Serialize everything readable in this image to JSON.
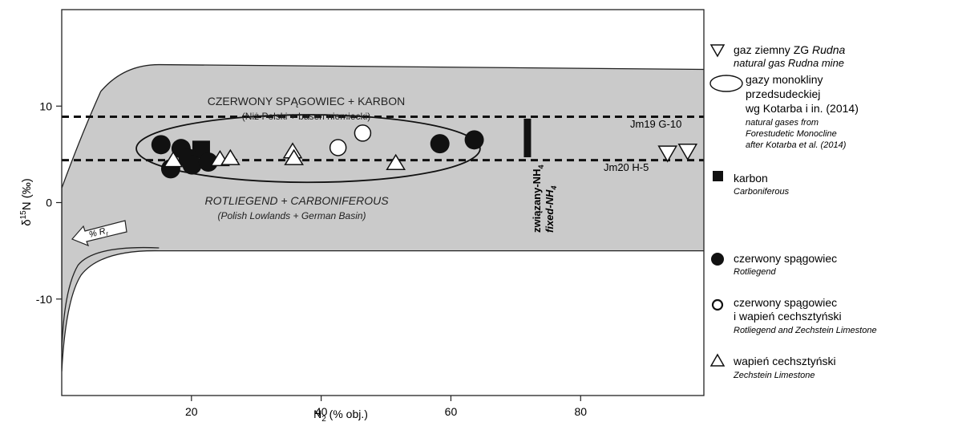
{
  "chart_data": {
    "type": "scatter",
    "xlabel": "N",
    "xlabel_sub": "2",
    "xlabel_rest": " (% obj.)",
    "ylabel_pre": "δ",
    "ylabel_sup": "15",
    "ylabel_rest": "N (‰)",
    "xlim": [
      0,
      99
    ],
    "ylim": [
      -20,
      20
    ],
    "x_ticks": [
      20,
      40,
      60,
      80
    ],
    "y_ticks": [
      10,
      0,
      -10
    ],
    "grid": false,
    "dashed_lines_y": [
      8.9,
      4.4
    ],
    "series": [
      {
        "name": "karbon",
        "name_en": "Carboniferous",
        "marker": "filled-square",
        "points": [
          {
            "x": 21.5,
            "y": 5.5
          }
        ]
      },
      {
        "name": "czerwony spągowiec",
        "name_en": "Rotliegend",
        "marker": "filled-circle",
        "points": [
          {
            "x": 15.3,
            "y": 6.0
          },
          {
            "x": 18.4,
            "y": 5.6
          },
          {
            "x": 16.8,
            "y": 3.5
          },
          {
            "x": 19.5,
            "y": 4.6
          },
          {
            "x": 20.1,
            "y": 3.9
          },
          {
            "x": 22.6,
            "y": 4.2
          },
          {
            "x": 58.3,
            "y": 6.1
          },
          {
            "x": 63.6,
            "y": 6.5
          }
        ]
      },
      {
        "name": "czerwony spągowiec i wapień cechsztyński",
        "name_en": "Rotliegend and Zechstein Limestone",
        "marker": "open-circle",
        "points": [
          {
            "x": 42.6,
            "y": 5.7
          },
          {
            "x": 46.4,
            "y": 7.2
          }
        ]
      },
      {
        "name": "wapień cechsztyński",
        "name_en": "Zechstein Limestone",
        "marker": "open-triangle-up",
        "points": [
          {
            "x": 17.2,
            "y": 4.4
          },
          {
            "x": 24.4,
            "y": 4.5
          },
          {
            "x": 26.0,
            "y": 4.6
          },
          {
            "x": 35.6,
            "y": 5.3
          },
          {
            "x": 35.8,
            "y": 4.6
          },
          {
            "x": 51.5,
            "y": 4.1
          }
        ]
      },
      {
        "name": "gaz ziemny ZG Rudna",
        "name_en": "natural gas Rudna mine",
        "marker": "open-triangle-down",
        "points": [
          {
            "x": 93.4,
            "y": 5.1
          },
          {
            "x": 96.5,
            "y": 5.3
          }
        ]
      }
    ],
    "fixed_nh4": {
      "x": 71.8,
      "y_min": 4.7,
      "y_max": 8.7
    },
    "envelope_label_pl": "CZERWONY SPĄGOWIEC + KARBON",
    "envelope_sub_pl": "(Niż Polski + basen niemiecki)",
    "envelope_label_en": "ROTLIEGEND + CARBONIFEROUS",
    "envelope_sub_en": "(Polish Lowlands + German Basin)",
    "fixed_label_pl": "związany-NH",
    "fixed_label_en": "fixed-NH",
    "fixed_label_sub": "4",
    "ro_label": "% R",
    "ro_label_sub": "r",
    "point_labels": [
      "Jm19 G-10",
      "Jm20 H-5"
    ]
  },
  "legend": {
    "placement": "right",
    "items": [
      {
        "symbol": "open-triangle-down",
        "line1": "gaz ziemny ZG ",
        "line1_it": "Rudna",
        "en": [
          "natural gas Rudna mine"
        ]
      },
      {
        "symbol": "open-ellipse",
        "pl": [
          "gazy monokliny",
          "przedsudeckiej",
          "wg Kotarba i in. (2014)"
        ],
        "en": [
          "natural gases from",
          "Forestudetic Monocline",
          "after Kotarba et al. (2014)"
        ]
      },
      {
        "symbol": "filled-square",
        "pl": [
          "karbon"
        ],
        "en": [
          "Carboniferous"
        ]
      },
      {
        "symbol": "filled-circle",
        "pl": [
          "czerwony spągowiec"
        ],
        "en": [
          "Rotliegend"
        ]
      },
      {
        "symbol": "open-circle",
        "pl": [
          "czerwony spągowiec",
          "i wapień cechsztyński"
        ],
        "en": [
          "Rotliegend and Zechstein Limestone"
        ]
      },
      {
        "symbol": "open-triangle-up",
        "pl": [
          "wapień cechsztyński"
        ],
        "en": [
          "Zechstein Limestone"
        ]
      }
    ]
  }
}
